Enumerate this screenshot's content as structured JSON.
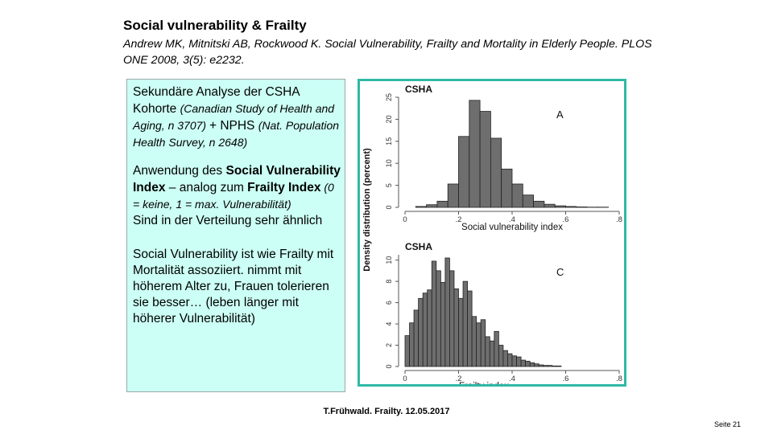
{
  "title": "Social vulnerability & Frailty",
  "citation": "Andrew MK, Mitnitski AB, Rockwood K. Social Vulnerability, Frailty and Mortality in Elderly People. PLOS ONE 2008, 3(5): e2232.",
  "box": {
    "p1_a": "Sekundäre Analyse der CSHA Kohorte ",
    "p1_b": "(Canadian Study of Health and Aging, n 3707) ",
    "p1_c": "+ NPHS ",
    "p1_d": "(Nat. Population Health Survey, n 2648)",
    "p2_a": "Anwendung des ",
    "p2_b": "Social Vulnerability Index",
    "p2_c": " – analog zum ",
    "p2_d": "Frailty Index",
    "p2_e": " (0 = keine, 1 = max. Vulnerabilität)",
    "p3": "Sind in der Verteilung sehr ähnlich",
    "p4": "Social Vulnerability ist wie Frailty mit Mortalität assoziiert. nimmt mit höherem Alter zu, Frauen tolerieren sie besser… (leben länger mit höherer Vulnerabilität)"
  },
  "footer": "T.Frühwald. Frailty. 12.05.2017",
  "page_number": "Seite 21",
  "colors": {
    "box_fill": "#ccfff5",
    "figure_border": "#2fb9a6",
    "bar_fill": "#6e6e6e"
  },
  "chart_data": [
    {
      "type": "bar",
      "title": "CSHA",
      "panel_label": "A",
      "xlabel": "Social vulnerability index",
      "ylabel": "Density distribution (percent)",
      "x_ticks": [
        "0",
        ".2",
        ".4",
        ".6",
        ".8"
      ],
      "y_ticks": [
        "0",
        "5",
        "10",
        "15",
        "20",
        "25"
      ],
      "xlim": [
        0,
        0.8
      ],
      "ylim": [
        0,
        25
      ],
      "bin_width": 0.04,
      "bin_starts": [
        0.04,
        0.08,
        0.12,
        0.16,
        0.2,
        0.24,
        0.28,
        0.32,
        0.36,
        0.4,
        0.44,
        0.48,
        0.52,
        0.56,
        0.6,
        0.64,
        0.68,
        0.72
      ],
      "values": [
        0.2,
        0.6,
        1.4,
        5.3,
        16.1,
        24.3,
        21.8,
        15.7,
        8.7,
        5.3,
        2.8,
        1.4,
        0.7,
        0.35,
        0.2,
        0.1,
        0.05,
        0.05
      ]
    },
    {
      "type": "bar",
      "title": "CSHA",
      "panel_label": "C",
      "xlabel": "Frailty index",
      "ylabel": "Density distribution (percent)",
      "x_ticks": [
        "0",
        ".2",
        ".4",
        ".6",
        ".8"
      ],
      "y_ticks": [
        "0",
        "2",
        "4",
        "6",
        "8",
        "10"
      ],
      "xlim": [
        0,
        0.8
      ],
      "ylim": [
        0,
        10.5
      ],
      "bin_width": 0.0167,
      "bin_starts": [
        0.0,
        0.0167,
        0.0333,
        0.05,
        0.0667,
        0.0833,
        0.1,
        0.1167,
        0.1333,
        0.15,
        0.1667,
        0.1833,
        0.2,
        0.2167,
        0.2333,
        0.25,
        0.2667,
        0.2833,
        0.3,
        0.3167,
        0.3333,
        0.35,
        0.3667,
        0.3833,
        0.4,
        0.4167,
        0.4333,
        0.45,
        0.4667,
        0.4833,
        0.5,
        0.5167,
        0.5333,
        0.55,
        0.5667
      ],
      "values": [
        2.9,
        4.1,
        5.3,
        6.4,
        6.9,
        7.2,
        9.9,
        9.0,
        7.9,
        10.2,
        9.0,
        7.3,
        6.4,
        8.0,
        7.1,
        4.7,
        4.1,
        4.4,
        2.8,
        2.4,
        3.3,
        2.0,
        1.5,
        1.2,
        1.0,
        0.9,
        0.6,
        0.5,
        0.35,
        0.25,
        0.15,
        0.1,
        0.1,
        0.05,
        0.05
      ]
    }
  ]
}
